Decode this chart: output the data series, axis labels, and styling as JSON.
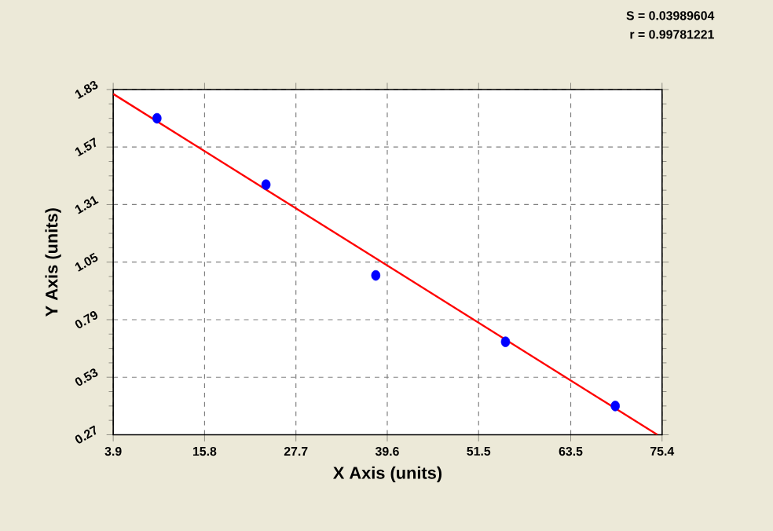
{
  "chart_data": {
    "type": "scatter",
    "xlabel": "X Axis (units)",
    "ylabel": "Y Axis (units)",
    "annotations": [
      "S = 0.03989604",
      "r = 0.99781221"
    ],
    "xlim": [
      3.9,
      75.4
    ],
    "xticks": [
      3.9,
      15.8,
      27.7,
      39.6,
      51.5,
      63.5,
      75.4
    ],
    "ylim": [
      0.27,
      1.83
    ],
    "yticks": [
      0.27,
      0.53,
      0.79,
      1.05,
      1.31,
      1.57,
      1.83
    ],
    "grid": true,
    "marker": "circle",
    "series": [
      {
        "color": "#0000ff",
        "x": [
          9.6,
          23.8,
          38.1,
          55.0,
          69.3
        ],
        "values": [
          1.7,
          1.4,
          0.99,
          0.69,
          0.4
        ]
      },
      {
        "type": "line",
        "color": "#ff0000",
        "marker": "none",
        "line_style": "solid",
        "x": [
          3.9,
          74.8
        ],
        "values": [
          1.81,
          0.27
        ]
      }
    ]
  }
}
